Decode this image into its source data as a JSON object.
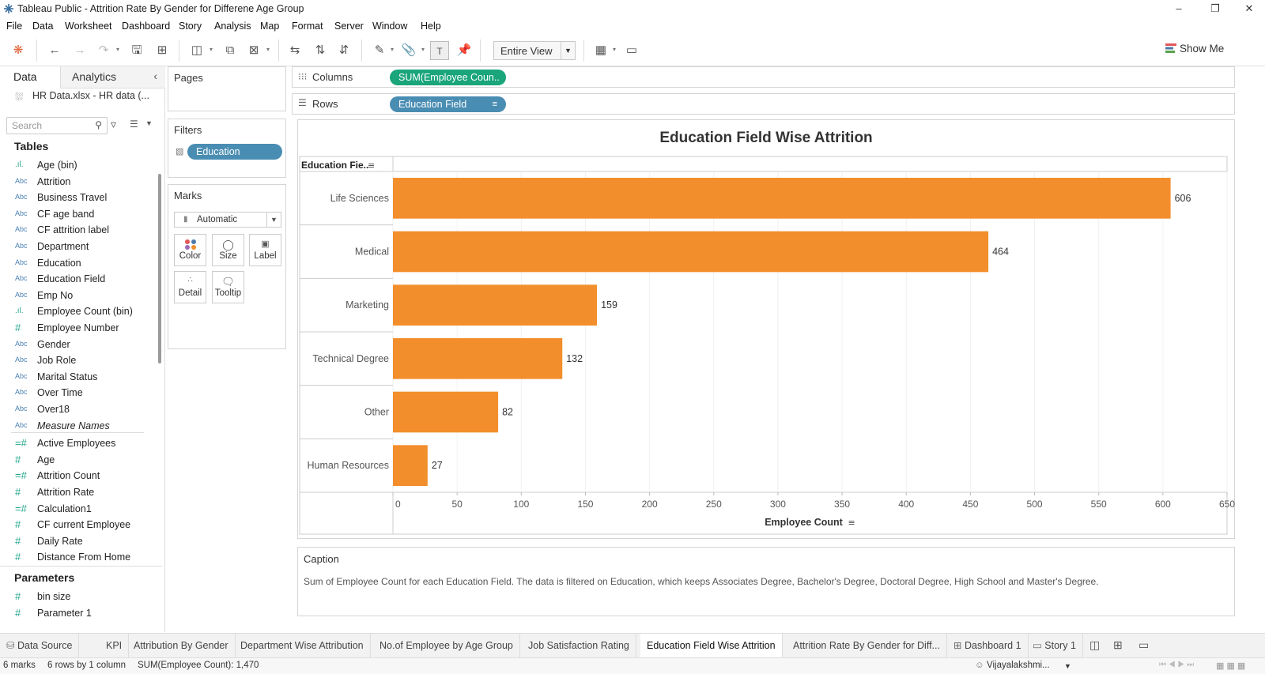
{
  "window": {
    "title": "Tableau Public - Attrition Rate By Gender for Differene Age Group"
  },
  "menu": [
    "File",
    "Data",
    "Worksheet",
    "Dashboard",
    "Story",
    "Analysis",
    "Map",
    "Format",
    "Server",
    "Window",
    "Help"
  ],
  "toolbar": {
    "fit_select": "Entire View",
    "show_me": "Show Me"
  },
  "left": {
    "tab_data": "Data",
    "tab_analytics": "Analytics",
    "source": "HR Data.xlsx - HR data (...",
    "search_placeholder": "Search",
    "tables_header": "Tables",
    "fields": [
      {
        "icon": "bin",
        "name": "Age (bin)"
      },
      {
        "icon": "Abc",
        "name": "Attrition"
      },
      {
        "icon": "Abc",
        "name": "Business Travel"
      },
      {
        "icon": "Abc",
        "name": "CF age band"
      },
      {
        "icon": "Abc",
        "name": "CF attrition label"
      },
      {
        "icon": "Abc",
        "name": "Department"
      },
      {
        "icon": "Abc",
        "name": "Education"
      },
      {
        "icon": "Abc",
        "name": "Education Field"
      },
      {
        "icon": "Abc",
        "name": "Emp No"
      },
      {
        "icon": "bin",
        "name": "Employee Count (bin)"
      },
      {
        "icon": "#",
        "name": "Employee Number"
      },
      {
        "icon": "Abc",
        "name": "Gender"
      },
      {
        "icon": "Abc",
        "name": "Job Role"
      },
      {
        "icon": "Abc",
        "name": "Marital Status"
      },
      {
        "icon": "Abc",
        "name": "Over Time"
      },
      {
        "icon": "Abc",
        "name": "Over18"
      },
      {
        "icon": "Abc",
        "name": "Measure Names"
      },
      {
        "icon": "=#",
        "name": "Active Employees"
      },
      {
        "icon": "#",
        "name": "Age"
      },
      {
        "icon": "=#",
        "name": "Attrition Count"
      },
      {
        "icon": "#",
        "name": "Attrition Rate"
      },
      {
        "icon": "=#",
        "name": "Calculation1"
      },
      {
        "icon": "#",
        "name": "CF current Employee"
      },
      {
        "icon": "#",
        "name": "Daily Rate"
      },
      {
        "icon": "#",
        "name": "Distance From Home"
      }
    ],
    "params_header": "Parameters",
    "params": [
      {
        "icon": "#",
        "name": "bin size"
      },
      {
        "icon": "#",
        "name": "Parameter 1"
      }
    ]
  },
  "cards": {
    "pages": "Pages",
    "filters": "Filters",
    "filter_pill": "Education",
    "marks": "Marks",
    "mark_type": "Automatic",
    "mark_buttons": [
      "Color",
      "Size",
      "Label",
      "Detail",
      "Tooltip"
    ]
  },
  "shelves": {
    "columns_label": "Columns",
    "columns_pill": "SUM(Employee Coun..",
    "rows_label": "Rows",
    "rows_pill": "Education Field"
  },
  "chart_data": {
    "type": "bar",
    "orientation": "horizontal",
    "title": "Education Field Wise Attrition",
    "row_header": "Education Fie..",
    "xlabel": "Employee Count",
    "categories": [
      "Life Sciences",
      "Medical",
      "Marketing",
      "Technical Degree",
      "Other",
      "Human Resources"
    ],
    "values": [
      606,
      464,
      159,
      132,
      82,
      27
    ],
    "xlim": [
      0,
      650
    ],
    "xticks": [
      0,
      50,
      100,
      150,
      200,
      250,
      300,
      350,
      400,
      450,
      500,
      550,
      600,
      650
    ],
    "bar_color": "#f28e2b",
    "data_labels": true
  },
  "caption": {
    "header": "Caption",
    "text": "Sum of Employee Count for each Education Field. The data is filtered on Education, which keeps Associates Degree, Bachelor's Degree, Doctoral Degree, High School and Master's Degree."
  },
  "sheet_tabs": [
    {
      "label": "Data Source",
      "icon": "db"
    },
    {
      "label": "KPI"
    },
    {
      "label": "Attribution By Gender"
    },
    {
      "label": "Department Wise Attribution"
    },
    {
      "label": "No.of Employee by Age Group"
    },
    {
      "label": "Job Satisfaction Rating"
    },
    {
      "label": "Education Field Wise Attrition",
      "active": true
    },
    {
      "label": "Attrition Rate By Gender for Diff..."
    },
    {
      "label": "Dashboard 1",
      "icon": "dash"
    },
    {
      "label": "Story 1",
      "icon": "story"
    }
  ],
  "status": {
    "marks": "6 marks",
    "dims": "6 rows by 1 column",
    "sum": "SUM(Employee Count): 1,470",
    "user": "Vijayalakshmi..."
  }
}
